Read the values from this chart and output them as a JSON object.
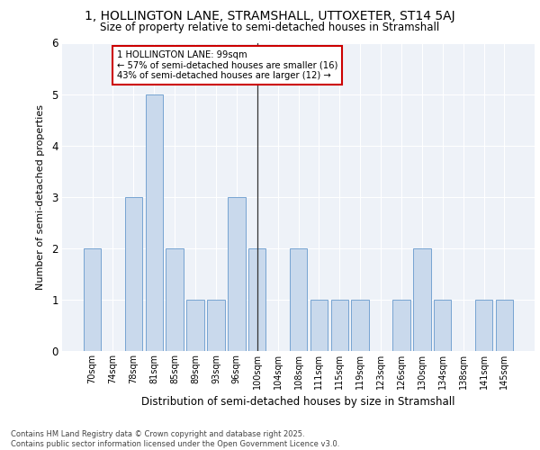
{
  "title_line1": "1, HOLLINGTON LANE, STRAMSHALL, UTTOXETER, ST14 5AJ",
  "title_line2": "Size of property relative to semi-detached houses in Stramshall",
  "xlabel": "Distribution of semi-detached houses by size in Stramshall",
  "ylabel": "Number of semi-detached properties",
  "categories": [
    "70sqm",
    "74sqm",
    "78sqm",
    "81sqm",
    "85sqm",
    "89sqm",
    "93sqm",
    "96sqm",
    "100sqm",
    "104sqm",
    "108sqm",
    "111sqm",
    "115sqm",
    "119sqm",
    "123sqm",
    "126sqm",
    "130sqm",
    "134sqm",
    "138sqm",
    "141sqm",
    "145sqm"
  ],
  "values": [
    2,
    0,
    3,
    5,
    2,
    1,
    1,
    3,
    2,
    0,
    2,
    1,
    1,
    1,
    0,
    1,
    2,
    1,
    0,
    1,
    1
  ],
  "bar_color": "#c9d9ec",
  "bar_edge_color": "#6699cc",
  "subject_bar_index": 8,
  "subject_line_color": "#333333",
  "annotation_text": "1 HOLLINGTON LANE: 99sqm\n← 57% of semi-detached houses are smaller (16)\n43% of semi-detached houses are larger (12) →",
  "annotation_box_color": "#ffffff",
  "annotation_box_edge_color": "#cc0000",
  "ylim": [
    0,
    6
  ],
  "yticks": [
    0,
    1,
    2,
    3,
    4,
    5,
    6
  ],
  "background_color": "#eef2f8",
  "footer_line1": "Contains HM Land Registry data © Crown copyright and database right 2025.",
  "footer_line2": "Contains public sector information licensed under the Open Government Licence v3.0."
}
